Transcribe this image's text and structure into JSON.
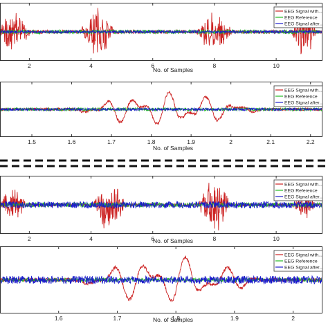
{
  "divider_style": "dashed",
  "chart_data": [
    {
      "type": "line",
      "xlabel": "No. of Samples",
      "xlim": [
        1.05,
        11.5
      ],
      "ylim": [
        -1,
        1
      ],
      "x_ticks": [
        2,
        4,
        6,
        8,
        10
      ],
      "x_tick_labels": [
        "2",
        "4",
        "6",
        "8",
        "10"
      ],
      "legend_position": "top-right",
      "grid": false,
      "series": [
        {
          "name": "EEG Signal with...",
          "color": "#cc2222",
          "bursts": [
            [
              1.5,
              0.75,
              0.55
            ],
            [
              4.2,
              0.95,
              0.55
            ],
            [
              8.0,
              0.75,
              0.6
            ],
            [
              10.9,
              0.95,
              0.4
            ]
          ],
          "baseline": 0.06
        },
        {
          "name": "EEG Reference",
          "color": "#22bb22",
          "baseline": 0.07
        },
        {
          "name": "EEG Signal after...",
          "color": "#1a1acc",
          "baseline": 0.05
        }
      ]
    },
    {
      "type": "line",
      "xlabel": "No. of Samples",
      "xlim": [
        1.42,
        2.23
      ],
      "ylim": [
        -1,
        1
      ],
      "x_ticks": [
        1.5,
        1.6,
        1.7,
        1.8,
        1.9,
        2.0,
        2.1,
        2.2
      ],
      "x_tick_labels": [
        "1.5",
        "1.6",
        "1.7",
        "1.8",
        "1.9",
        "2",
        "2.1",
        "2.2"
      ],
      "legend_position": "top-right",
      "grid": false,
      "series": [
        {
          "name": "EEG Signal with...",
          "color": "#cc2222",
          "wave": {
            "start": 1.62,
            "end": 2.2,
            "amplitude": 0.65,
            "cycles": 7
          },
          "baseline": 0.05
        },
        {
          "name": "EEG Reference",
          "color": "#22bb22",
          "baseline": 0.06
        },
        {
          "name": "EEG Signal after...",
          "color": "#1a1acc",
          "baseline": 0.05
        }
      ]
    },
    {
      "type": "line",
      "xlabel": "No. of Samples",
      "xlim": [
        1.05,
        11.5
      ],
      "ylim": [
        -1,
        1
      ],
      "x_ticks": [
        2,
        4,
        6,
        8,
        10
      ],
      "x_tick_labels": [
        "2",
        "4",
        "6",
        "8",
        "10"
      ],
      "legend_position": "top-right",
      "grid": false,
      "series": [
        {
          "name": "EEG Signal with...",
          "color": "#cc2222",
          "bursts": [
            [
              1.5,
              0.6,
              0.45
            ],
            [
              4.6,
              0.95,
              0.55
            ],
            [
              8.0,
              0.95,
              0.55
            ],
            [
              10.9,
              0.5,
              0.4
            ]
          ],
          "baseline": 0.05
        },
        {
          "name": "EEG Reference",
          "color": "#22bb22",
          "baseline": 0.08
        },
        {
          "name": "EEG Signal after...",
          "color": "#1a1acc",
          "baseline": 0.12
        }
      ]
    },
    {
      "type": "line",
      "xlabel": "No. of Samples",
      "xlim": [
        1.5,
        2.05
      ],
      "ylim": [
        -1,
        1
      ],
      "x_ticks": [
        1.6,
        1.7,
        1.8,
        1.9,
        2.0
      ],
      "x_tick_labels": [
        "1.6",
        "1.7",
        "1.8",
        "1.9",
        "2"
      ],
      "legend_position": "top-right",
      "grid": false,
      "series": [
        {
          "name": "EEG Signal with...",
          "color": "#cc2222",
          "wave": {
            "start": 1.64,
            "end": 2.03,
            "amplitude": 0.75,
            "cycles": 6
          },
          "baseline": 0.05
        },
        {
          "name": "EEG Reference",
          "color": "#22bb22",
          "baseline": 0.06
        },
        {
          "name": "EEG Signal after...",
          "color": "#1a1acc",
          "baseline": 0.12
        }
      ]
    }
  ]
}
